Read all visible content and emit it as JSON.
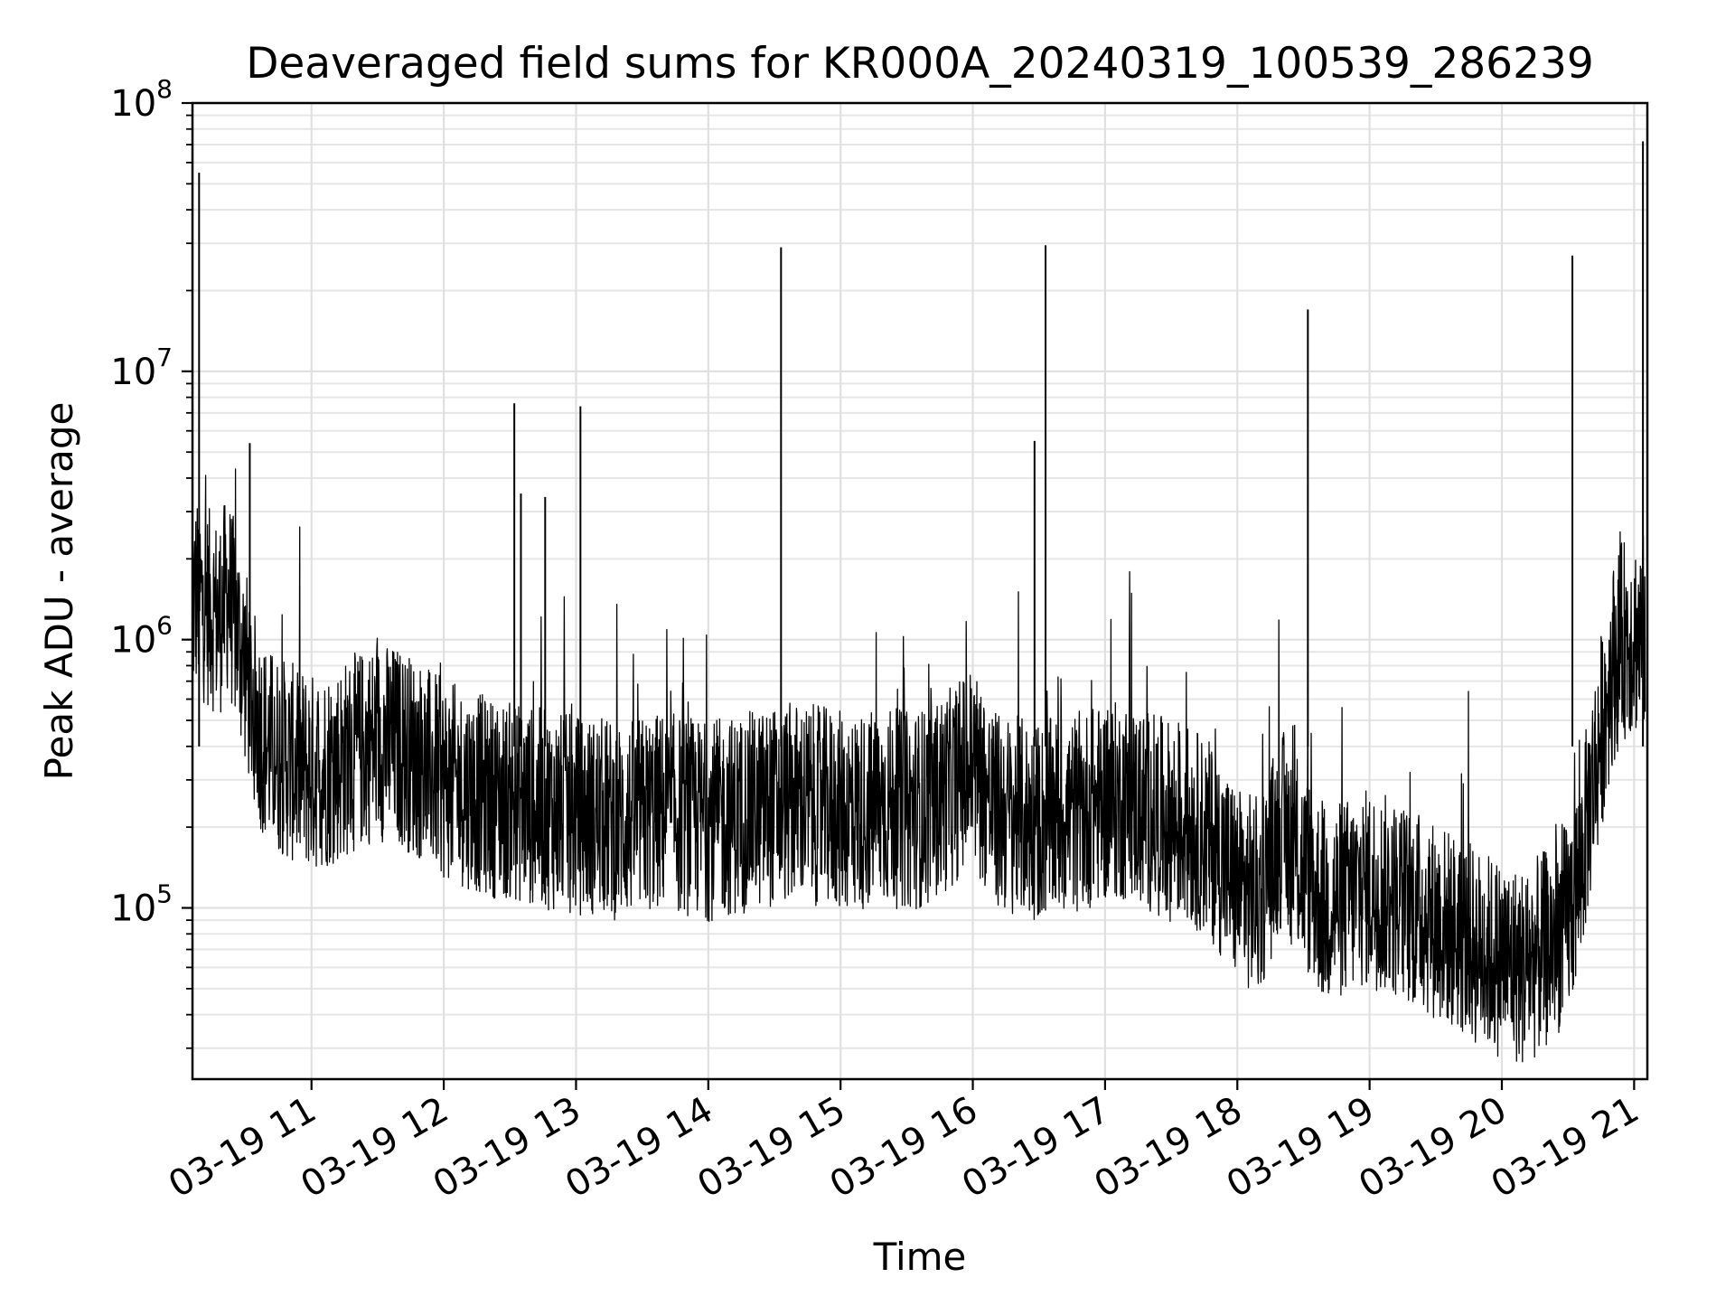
{
  "chart_data": {
    "type": "line",
    "title": "Deaveraged field sums for KR000A_20240319_100539_286239",
    "xlabel": "Time",
    "ylabel": "Peak ADU - average",
    "yscale": "log",
    "ylim": [
      23000,
      100000000
    ],
    "xlim": [
      "2024-03-19 10:06",
      "2024-03-19 21:06"
    ],
    "grid": true,
    "x_ticks": [
      {
        "value": "2024-03-19 11:00",
        "label": "03-19 11"
      },
      {
        "value": "2024-03-19 12:00",
        "label": "03-19 12"
      },
      {
        "value": "2024-03-19 13:00",
        "label": "03-19 13"
      },
      {
        "value": "2024-03-19 14:00",
        "label": "03-19 14"
      },
      {
        "value": "2024-03-19 15:00",
        "label": "03-19 15"
      },
      {
        "value": "2024-03-19 16:00",
        "label": "03-19 16"
      },
      {
        "value": "2024-03-19 17:00",
        "label": "03-19 17"
      },
      {
        "value": "2024-03-19 18:00",
        "label": "03-19 18"
      },
      {
        "value": "2024-03-19 19:00",
        "label": "03-19 19"
      },
      {
        "value": "2024-03-19 20:00",
        "label": "03-19 20"
      },
      {
        "value": "2024-03-19 21:00",
        "label": "03-19 21"
      }
    ],
    "y_ticks": [
      {
        "value": 100000,
        "base": "10",
        "exp": "5"
      },
      {
        "value": 1000000,
        "base": "10",
        "exp": "6"
      },
      {
        "value": 10000000,
        "base": "10",
        "exp": "7"
      },
      {
        "value": 100000000,
        "base": "10",
        "exp": "8"
      }
    ],
    "series": [
      {
        "color": "#000000",
        "x": [
          "2024-03-19 10:06",
          "2024-03-19 10:08",
          "2024-03-19 10:10",
          "2024-03-19 10:14",
          "2024-03-19 10:18",
          "2024-03-19 10:22",
          "2024-03-19 10:26",
          "2024-03-19 10:30",
          "2024-03-19 10:35",
          "2024-03-19 10:40",
          "2024-03-19 10:50",
          "2024-03-19 11:00",
          "2024-03-19 11:10",
          "2024-03-19 11:20",
          "2024-03-19 11:30",
          "2024-03-19 11:40",
          "2024-03-19 11:50",
          "2024-03-19 12:00",
          "2024-03-19 12:10",
          "2024-03-19 12:20",
          "2024-03-19 12:30",
          "2024-03-19 12:40",
          "2024-03-19 12:50",
          "2024-03-19 13:00",
          "2024-03-19 13:10",
          "2024-03-19 13:20",
          "2024-03-19 13:30",
          "2024-03-19 13:40",
          "2024-03-19 13:50",
          "2024-03-19 14:00",
          "2024-03-19 14:10",
          "2024-03-19 14:20",
          "2024-03-19 14:30",
          "2024-03-19 14:40",
          "2024-03-19 14:50",
          "2024-03-19 15:00",
          "2024-03-19 15:10",
          "2024-03-19 15:20",
          "2024-03-19 15:30",
          "2024-03-19 15:40",
          "2024-03-19 15:50",
          "2024-03-19 16:00",
          "2024-03-19 16:10",
          "2024-03-19 16:20",
          "2024-03-19 16:30",
          "2024-03-19 16:40",
          "2024-03-19 16:50",
          "2024-03-19 17:00",
          "2024-03-19 17:10",
          "2024-03-19 17:20",
          "2024-03-19 17:30",
          "2024-03-19 17:40",
          "2024-03-19 17:50",
          "2024-03-19 18:00",
          "2024-03-19 18:10",
          "2024-03-19 18:20",
          "2024-03-19 18:30",
          "2024-03-19 18:40",
          "2024-03-19 18:50",
          "2024-03-19 19:00",
          "2024-03-19 19:10",
          "2024-03-19 19:20",
          "2024-03-19 19:30",
          "2024-03-19 19:40",
          "2024-03-19 19:50",
          "2024-03-19 20:00",
          "2024-03-19 20:10",
          "2024-03-19 20:20",
          "2024-03-19 20:30",
          "2024-03-19 20:35",
          "2024-03-19 20:40",
          "2024-03-19 20:45",
          "2024-03-19 20:50",
          "2024-03-19 20:55",
          "2024-03-19 21:00",
          "2024-03-19 21:03",
          "2024-03-19 21:05"
        ],
        "y": [
          1300000,
          1500000,
          1400000,
          1300000,
          1200000,
          1500000,
          1100000,
          800000,
          500000,
          400000,
          350000,
          320000,
          340000,
          380000,
          420000,
          400000,
          350000,
          300000,
          280000,
          260000,
          250000,
          240000,
          230000,
          220000,
          220000,
          210000,
          220000,
          230000,
          220000,
          210000,
          220000,
          230000,
          240000,
          250000,
          240000,
          230000,
          230000,
          240000,
          230000,
          240000,
          280000,
          350000,
          230000,
          220000,
          210000,
          220000,
          230000,
          250000,
          250000,
          230000,
          210000,
          200000,
          170000,
          120000,
          110000,
          200000,
          140000,
          100000,
          110000,
          120000,
          110000,
          100000,
          90000,
          80000,
          70000,
          65000,
          60000,
          70000,
          90000,
          130000,
          250000,
          450000,
          800000,
          1000000,
          1050000,
          1000000,
          1100000
        ]
      }
    ],
    "spikes": [
      {
        "x": "2024-03-19 10:09",
        "y": 55000000
      },
      {
        "x": "2024-03-19 10:32",
        "y": 5400000
      },
      {
        "x": "2024-03-19 12:32",
        "y": 7600000
      },
      {
        "x": "2024-03-19 12:35",
        "y": 3500000
      },
      {
        "x": "2024-03-19 12:46",
        "y": 3400000
      },
      {
        "x": "2024-03-19 13:02",
        "y": 7400000
      },
      {
        "x": "2024-03-19 14:33",
        "y": 29000000
      },
      {
        "x": "2024-03-19 16:28",
        "y": 5500000
      },
      {
        "x": "2024-03-19 16:33",
        "y": 29500000
      },
      {
        "x": "2024-03-19 18:32",
        "y": 17000000
      },
      {
        "x": "2024-03-19 20:32",
        "y": 27000000
      },
      {
        "x": "2024-03-19 21:04",
        "y": 72000000
      }
    ]
  }
}
